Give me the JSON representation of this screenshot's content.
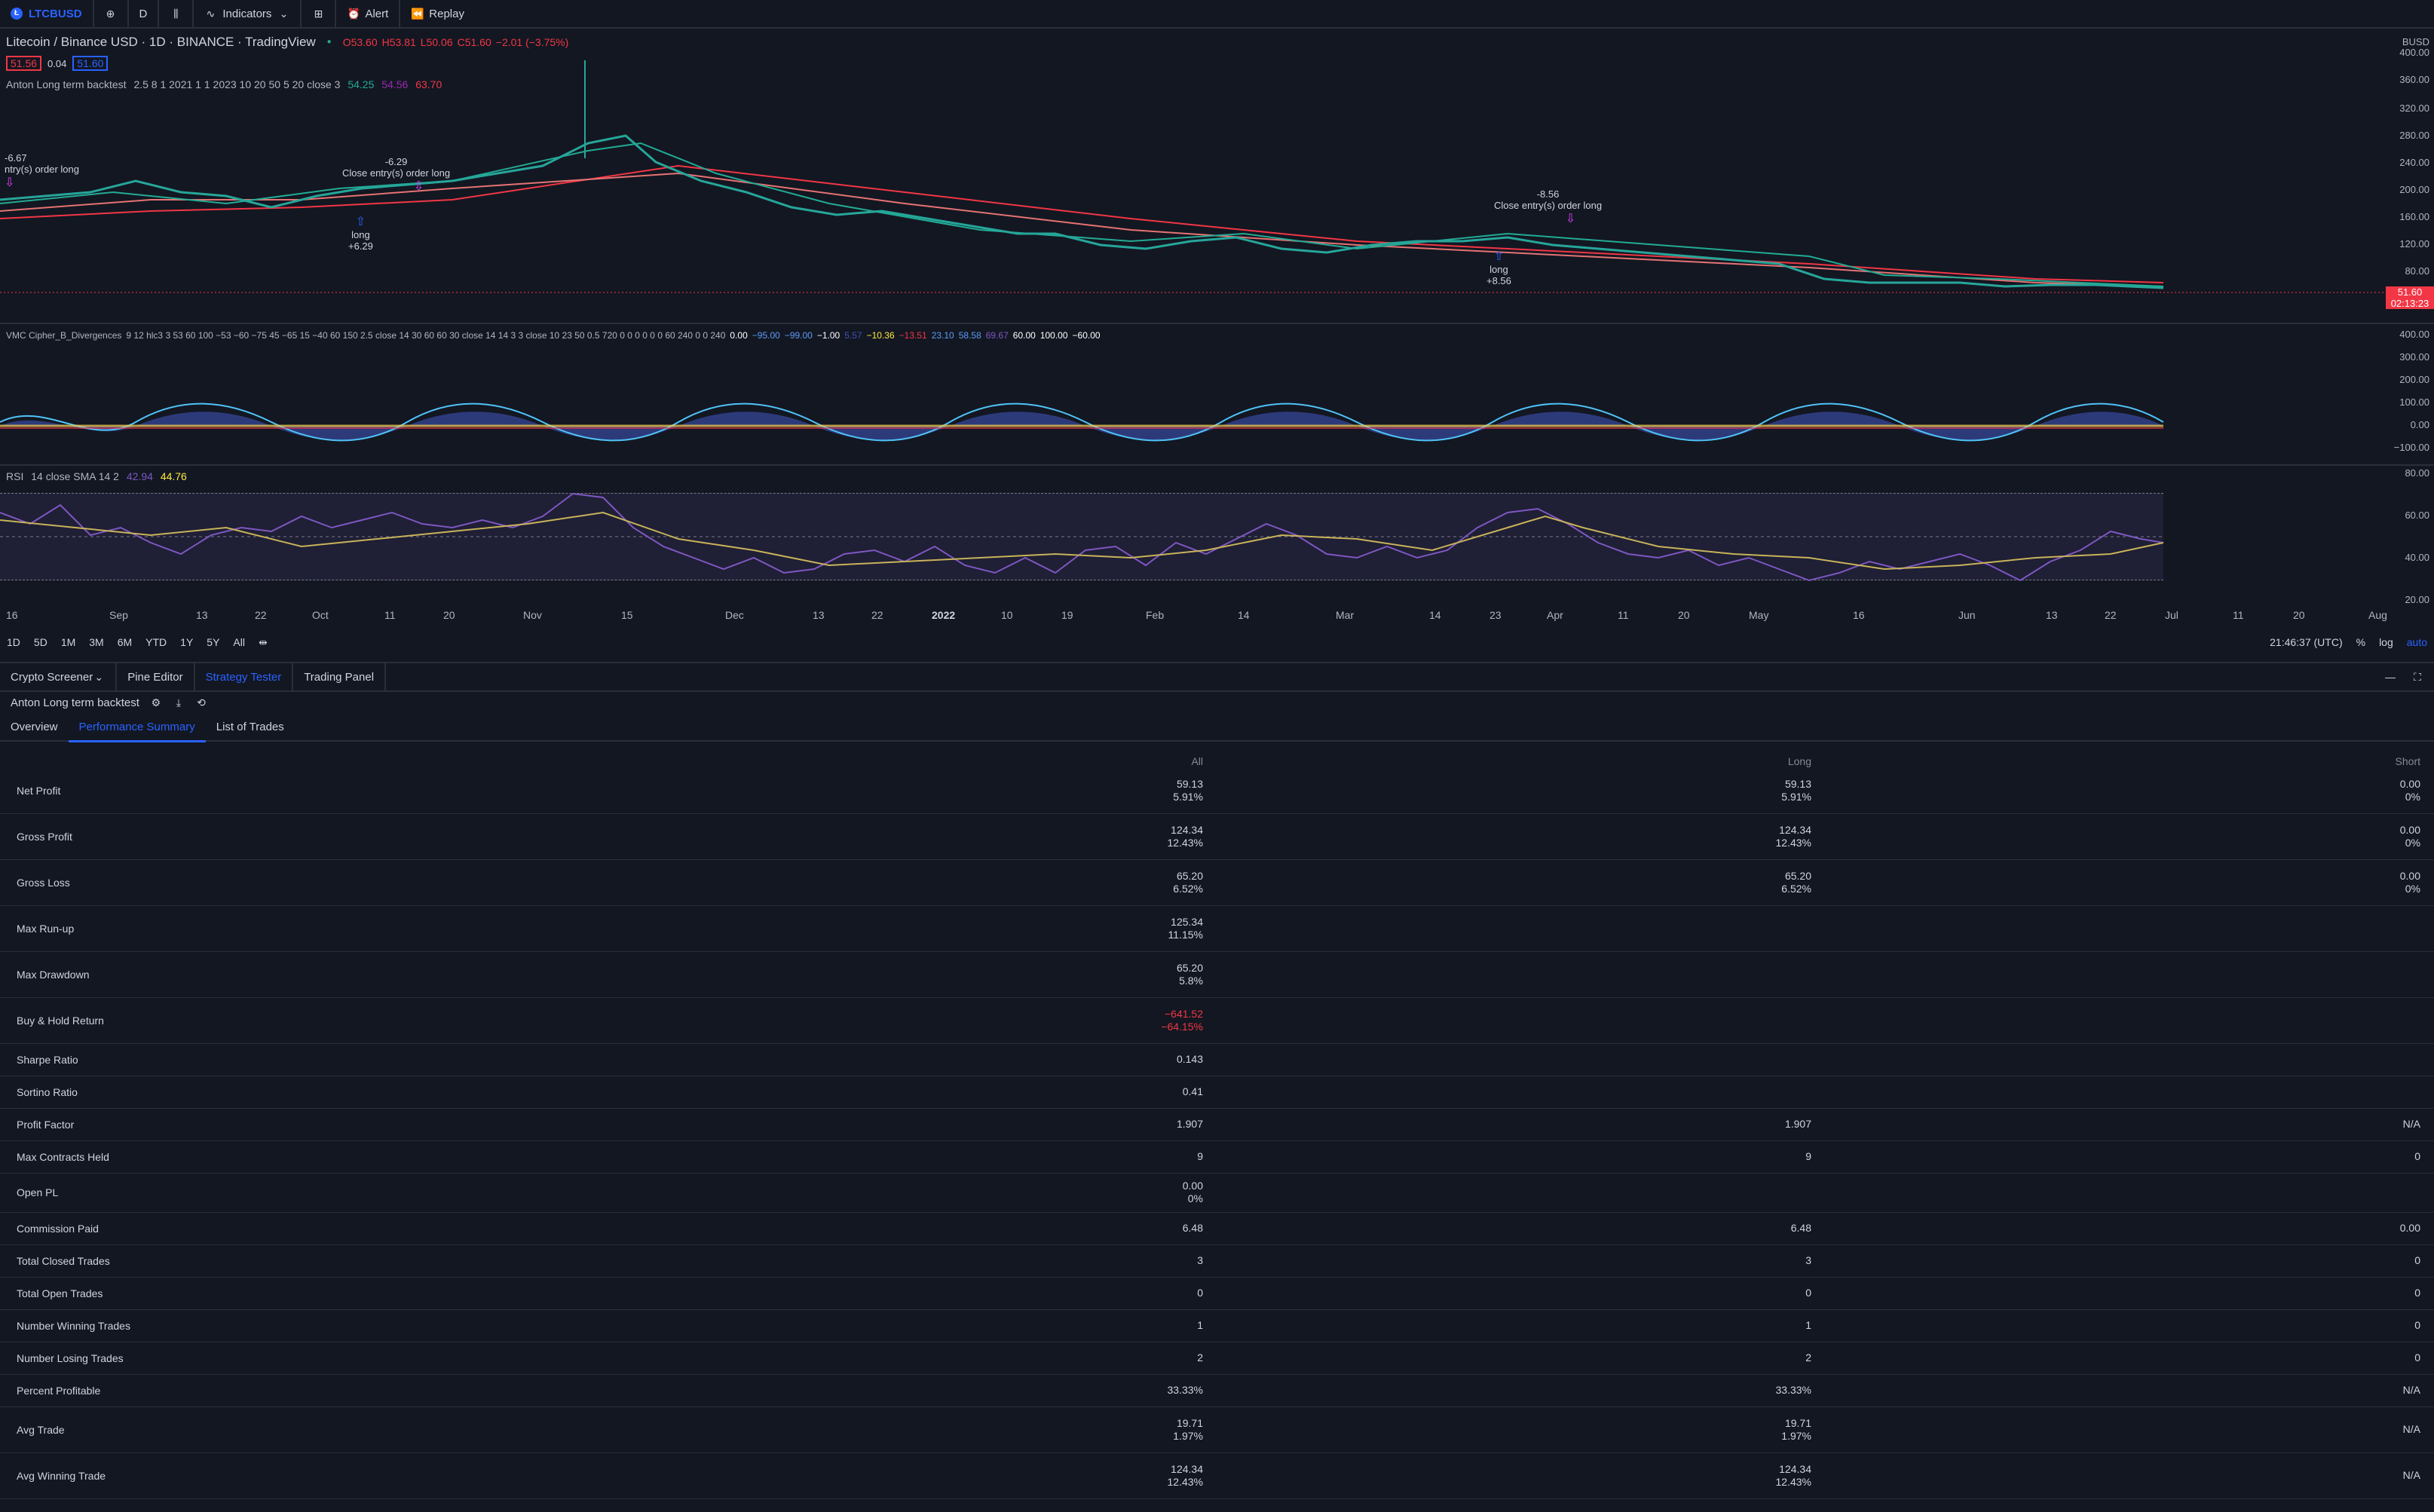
{
  "toolbar": {
    "symbol": "LTCBUSD",
    "interval": "D",
    "indicators": "Indicators",
    "alert": "Alert",
    "replay": "Replay"
  },
  "legend": {
    "title": "Litecoin / Binance USD · 1D · BINANCE · TradingView",
    "o": "O53.60",
    "h": "H53.81",
    "l": "L50.06",
    "c": "C51.60",
    "chg": "−2.01 (−3.75%)",
    "bid": "51.56",
    "spread": "0.04",
    "ask": "51.60",
    "strategy": "Anton Long term backtest",
    "strategy_params": "2.5 8 1 2021 1 1 2023 10 20 50 5 20 close 3",
    "strategy_v1": "54.25",
    "strategy_v2": "54.56",
    "strategy_v3": "63.70",
    "vmc": "VMC Cipher_B_Divergences",
    "vmc_params": "9 12 hlc3 3 53 60 100 −53 −60 −75 45 −65 15 −40 60 150 2.5 close 14 30 60 60 30 close 14 14 3 3 close 10 23 50 0.5 720 0 0 0 0 0 0 60 240 0 0 240",
    "vmc_vals": [
      "0.00",
      "−95.00",
      "−99.00",
      "−1.00",
      "5.57",
      "−10.36",
      "−13.51",
      "23.10",
      "58.58",
      "69.67",
      "60.00",
      "100.00",
      "−60.00"
    ],
    "rsi": "RSI",
    "rsi_params": "14 close SMA 14 2",
    "rsi_v1": "42.94",
    "rsi_v2": "44.76"
  },
  "markers": [
    {
      "label": "-6.67",
      "text": "ntry(s) order long"
    },
    {
      "label": "-6.29",
      "text": "Close entry(s) order long"
    },
    {
      "label": "long",
      "text": "+6.29"
    },
    {
      "label": "-8.56",
      "text": "Close entry(s) order long"
    },
    {
      "label": "long",
      "text": "+8.56"
    }
  ],
  "price_axis": {
    "currency": "BUSD",
    "ticks": [
      "400.00",
      "360.00",
      "320.00",
      "280.00",
      "240.00",
      "200.00",
      "160.00",
      "120.00",
      "80.00",
      "40.00"
    ],
    "last": "51.60",
    "countdown": "02:13:23"
  },
  "vmc_axis": [
    "400.00",
    "300.00",
    "200.00",
    "100.00",
    "0.00",
    "−100.00"
  ],
  "rsi_axis": [
    "80.00",
    "60.00",
    "40.00",
    "20.00"
  ],
  "time_axis": [
    "16",
    "Sep",
    "13",
    "22",
    "Oct",
    "11",
    "20",
    "Nov",
    "15",
    "Dec",
    "13",
    "22",
    "2022",
    "10",
    "19",
    "Feb",
    "14",
    "Mar",
    "14",
    "23",
    "Apr",
    "11",
    "20",
    "May",
    "16",
    "Jun",
    "13",
    "22",
    "Jul",
    "11",
    "20",
    "Aug"
  ],
  "range_bar": {
    "ranges": [
      "1D",
      "5D",
      "1M",
      "3M",
      "6M",
      "YTD",
      "1Y",
      "5Y",
      "All"
    ],
    "clock": "21:46:37 (UTC)",
    "pct": "%",
    "log": "log",
    "auto": "auto"
  },
  "bottom_tabs": [
    "Crypto Screener",
    "Pine Editor",
    "Strategy Tester",
    "Trading Panel"
  ],
  "strategy_name": "Anton Long term backtest",
  "sub_tabs": [
    "Overview",
    "Performance Summary",
    "List of Trades"
  ],
  "table": {
    "headers": [
      "All",
      "Long",
      "Short"
    ],
    "rows": [
      {
        "label": "Net Profit",
        "all": [
          "59.13",
          "5.91%"
        ],
        "long": [
          "59.13",
          "5.91%"
        ],
        "short": [
          "0.00",
          "0%"
        ]
      },
      {
        "label": "Gross Profit",
        "all": [
          "124.34",
          "12.43%"
        ],
        "long": [
          "124.34",
          "12.43%"
        ],
        "short": [
          "0.00",
          "0%"
        ]
      },
      {
        "label": "Gross Loss",
        "all": [
          "65.20",
          "6.52%"
        ],
        "long": [
          "65.20",
          "6.52%"
        ],
        "short": [
          "0.00",
          "0%"
        ]
      },
      {
        "label": "Max Run-up",
        "all": [
          "125.34",
          "11.15%"
        ],
        "long": [],
        "short": []
      },
      {
        "label": "Max Drawdown",
        "all": [
          "65.20",
          "5.8%"
        ],
        "long": [],
        "short": []
      },
      {
        "label": "Buy & Hold Return",
        "all": [
          "−641.52",
          "−64.15%"
        ],
        "long": [],
        "short": [],
        "negative": true
      },
      {
        "label": "Sharpe Ratio",
        "all": [
          "0.143"
        ],
        "long": [],
        "short": []
      },
      {
        "label": "Sortino Ratio",
        "all": [
          "0.41"
        ],
        "long": [],
        "short": []
      },
      {
        "label": "Profit Factor",
        "all": [
          "1.907"
        ],
        "long": [
          "1.907"
        ],
        "short": [
          "N/A"
        ]
      },
      {
        "label": "Max Contracts Held",
        "all": [
          "9"
        ],
        "long": [
          "9"
        ],
        "short": [
          "0"
        ]
      },
      {
        "label": "Open PL",
        "all": [
          "0.00",
          "0%"
        ],
        "long": [],
        "short": []
      },
      {
        "label": "Commission Paid",
        "all": [
          "6.48"
        ],
        "long": [
          "6.48"
        ],
        "short": [
          "0.00"
        ]
      },
      {
        "label": "Total Closed Trades",
        "all": [
          "3"
        ],
        "long": [
          "3"
        ],
        "short": [
          "0"
        ]
      },
      {
        "label": "Total Open Trades",
        "all": [
          "0"
        ],
        "long": [
          "0"
        ],
        "short": [
          "0"
        ]
      },
      {
        "label": "Number Winning Trades",
        "all": [
          "1"
        ],
        "long": [
          "1"
        ],
        "short": [
          "0"
        ]
      },
      {
        "label": "Number Losing Trades",
        "all": [
          "2"
        ],
        "long": [
          "2"
        ],
        "short": [
          "0"
        ]
      },
      {
        "label": "Percent Profitable",
        "all": [
          "33.33%"
        ],
        "long": [
          "33.33%"
        ],
        "short": [
          "N/A"
        ]
      },
      {
        "label": "Avg Trade",
        "all": [
          "19.71",
          "1.97%"
        ],
        "long": [
          "19.71",
          "1.97%"
        ],
        "short": [
          "N/A"
        ]
      },
      {
        "label": "Avg Winning Trade",
        "all": [
          "124.34",
          "12.43%"
        ],
        "long": [
          "124.34",
          "12.43%"
        ],
        "short": [
          "N/A"
        ]
      }
    ]
  }
}
